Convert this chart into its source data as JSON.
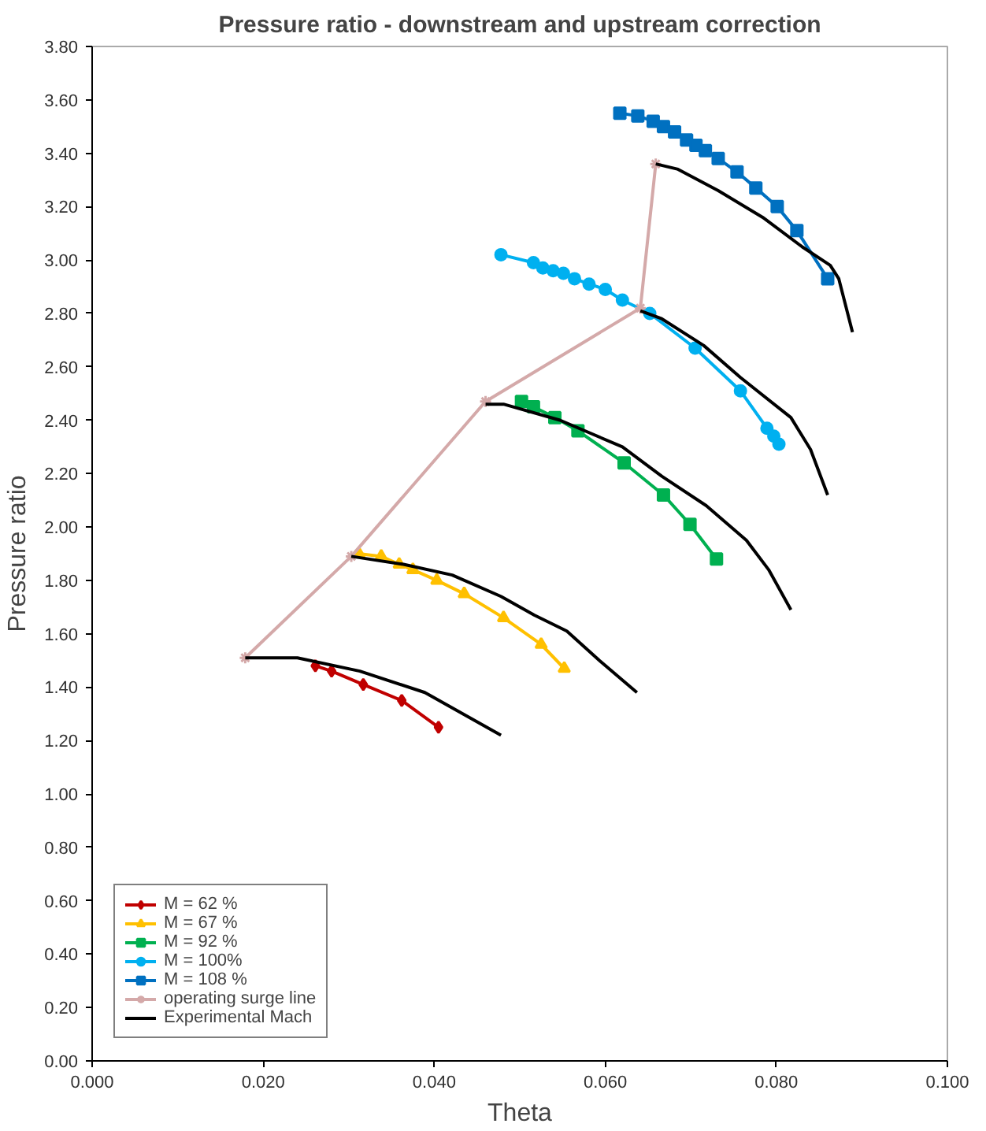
{
  "chart_data": {
    "type": "line",
    "title": "Pressure ratio - downstream and upstream correction",
    "xlabel": "Theta",
    "ylabel": "Pressure ratio",
    "xlim": [
      0,
      0.1
    ],
    "ylim": [
      0,
      3.8
    ],
    "xticks": [
      {
        "value": 0,
        "label": "0.000"
      },
      {
        "value": 0.02,
        "label": "0.020"
      },
      {
        "value": 0.04,
        "label": "0.040"
      },
      {
        "value": 0.06,
        "label": "0.060"
      },
      {
        "value": 0.08,
        "label": "0.080"
      },
      {
        "value": 0.1,
        "label": "0.100"
      }
    ],
    "yticks": [
      {
        "value": 0,
        "label": "0.00"
      },
      {
        "value": 0.2,
        "label": "0.20"
      },
      {
        "value": 0.4,
        "label": "0.40"
      },
      {
        "value": 0.6,
        "label": "0.60"
      },
      {
        "value": 0.8,
        "label": "0.80"
      },
      {
        "value": 1.0,
        "label": "1.00"
      },
      {
        "value": 1.2,
        "label": "1.20"
      },
      {
        "value": 1.4,
        "label": "1.40"
      },
      {
        "value": 1.6,
        "label": "1.60"
      },
      {
        "value": 1.8,
        "label": "1.80"
      },
      {
        "value": 2.0,
        "label": "2.00"
      },
      {
        "value": 2.2,
        "label": "2.20"
      },
      {
        "value": 2.4,
        "label": "2.40"
      },
      {
        "value": 2.6,
        "label": "2.60"
      },
      {
        "value": 2.8,
        "label": "2.80"
      },
      {
        "value": 3.0,
        "label": "3.00"
      },
      {
        "value": 3.2,
        "label": "3.20"
      },
      {
        "value": 3.4,
        "label": "3.40"
      },
      {
        "value": 3.6,
        "label": "3.60"
      },
      {
        "value": 3.8,
        "label": "3.80"
      }
    ],
    "grid": false,
    "legend": "bottom left",
    "line_style": "solid",
    "series": [
      {
        "name": "M = 62 %",
        "color": "#c00000",
        "marker": "diamond",
        "x": [
          0.0261,
          0.028,
          0.0317,
          0.0362,
          0.0405
        ],
        "values": [
          1.48,
          1.46,
          1.41,
          1.35,
          1.25
        ]
      },
      {
        "name": "M = 67 %",
        "color": "#ffc000",
        "marker": "triangle",
        "x": [
          0.0312,
          0.0338,
          0.0359,
          0.0375,
          0.0403,
          0.0435,
          0.0481,
          0.0525,
          0.0552
        ],
        "values": [
          1.9,
          1.89,
          1.86,
          1.84,
          1.8,
          1.75,
          1.66,
          1.56,
          1.47
        ]
      },
      {
        "name": "M = 92 %",
        "color": "#00b050",
        "marker": "square",
        "x": [
          0.0502,
          0.0516,
          0.0541,
          0.0568,
          0.0622,
          0.0668,
          0.0699,
          0.073
        ],
        "values": [
          2.47,
          2.45,
          2.41,
          2.36,
          2.24,
          2.12,
          2.01,
          1.88
        ]
      },
      {
        "name": "M = 100%",
        "color": "#00b0f0",
        "marker": "circle",
        "x": [
          0.0478,
          0.0516,
          0.0527,
          0.0539,
          0.0551,
          0.0564,
          0.0581,
          0.06,
          0.062,
          0.0652,
          0.0705,
          0.0758,
          0.0789,
          0.0797,
          0.0803
        ],
        "values": [
          3.02,
          2.99,
          2.97,
          2.96,
          2.95,
          2.93,
          2.91,
          2.89,
          2.85,
          2.8,
          2.67,
          2.51,
          2.37,
          2.34,
          2.31
        ]
      },
      {
        "name": "M = 108 %",
        "color": "#0070c0",
        "marker": "square",
        "x": [
          0.0617,
          0.0638,
          0.0656,
          0.0668,
          0.0681,
          0.0695,
          0.0706,
          0.0717,
          0.0732,
          0.0754,
          0.0776,
          0.0801,
          0.0824,
          0.086
        ],
        "values": [
          3.55,
          3.54,
          3.52,
          3.5,
          3.48,
          3.45,
          3.43,
          3.41,
          3.38,
          3.33,
          3.27,
          3.2,
          3.11,
          2.93
        ]
      },
      {
        "name": "operating surge line",
        "color": "#d4a9a9",
        "marker": "cross",
        "x": [
          0.0179,
          0.0303,
          0.046,
          0.0641,
          0.0659
        ],
        "values": [
          1.51,
          1.89,
          2.47,
          2.82,
          3.36
        ]
      },
      {
        "name": "Experimental Mach",
        "color": "#000000",
        "marker": "none",
        "x": [
          0.0179,
          0.024,
          0.0313,
          0.0389,
          0.0478,
          null,
          0.0303,
          0.0364,
          0.0421,
          0.0478,
          0.0517,
          0.0555,
          0.0593,
          0.0637,
          null,
          0.046,
          0.0481,
          0.0547,
          0.062,
          0.0666,
          0.0718,
          0.0765,
          0.0791,
          0.0817,
          null,
          0.0641,
          0.0666,
          0.0715,
          0.0758,
          0.0817,
          0.084,
          0.086,
          null,
          0.0659,
          0.0685,
          0.0732,
          0.0784,
          0.083,
          0.0863,
          0.0873,
          0.0889
        ],
        "values": [
          1.51,
          1.51,
          1.46,
          1.38,
          1.22,
          null,
          1.89,
          1.86,
          1.82,
          1.74,
          1.67,
          1.61,
          1.5,
          1.38,
          null,
          2.46,
          2.46,
          2.4,
          2.3,
          2.19,
          2.08,
          1.95,
          1.84,
          1.69,
          null,
          2.81,
          2.78,
          2.68,
          2.56,
          2.41,
          2.29,
          2.12,
          null,
          3.36,
          3.34,
          3.26,
          3.16,
          3.05,
          2.98,
          2.93,
          2.73
        ]
      }
    ]
  }
}
